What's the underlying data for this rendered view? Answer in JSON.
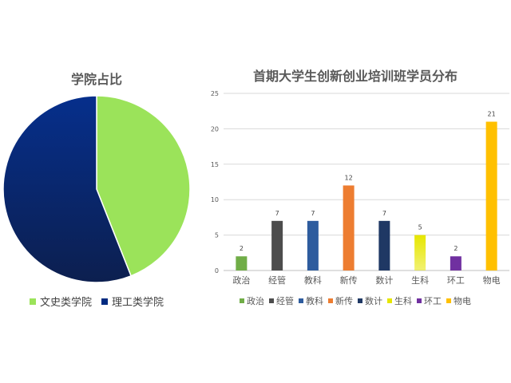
{
  "chart_data": [
    {
      "type": "pie",
      "title": "学院占比",
      "categories": [
        "文史类学院",
        "理工类学院"
      ],
      "values": [
        44,
        56
      ],
      "colors": [
        "#9be35a",
        "#002a80"
      ],
      "legend_position": "bottom"
    },
    {
      "type": "bar",
      "title": "首期大学生创新创业培训班学员分布",
      "categories": [
        "政治",
        "经管",
        "教科",
        "新传",
        "数计",
        "生科",
        "环工",
        "物电"
      ],
      "values": [
        2,
        7,
        7,
        12,
        7,
        5,
        2,
        21
      ],
      "colors": [
        "#70ad47",
        "#4d4d4d",
        "#2e5c9e",
        "#ed7d31",
        "#1f3864",
        "#e6e600",
        "#7030a0",
        "#ffc000"
      ],
      "ylim": [
        0,
        25
      ],
      "yticks": [
        "0",
        "5",
        "10",
        "15",
        "20",
        "25"
      ],
      "grid": true,
      "legend_position": "bottom"
    }
  ]
}
